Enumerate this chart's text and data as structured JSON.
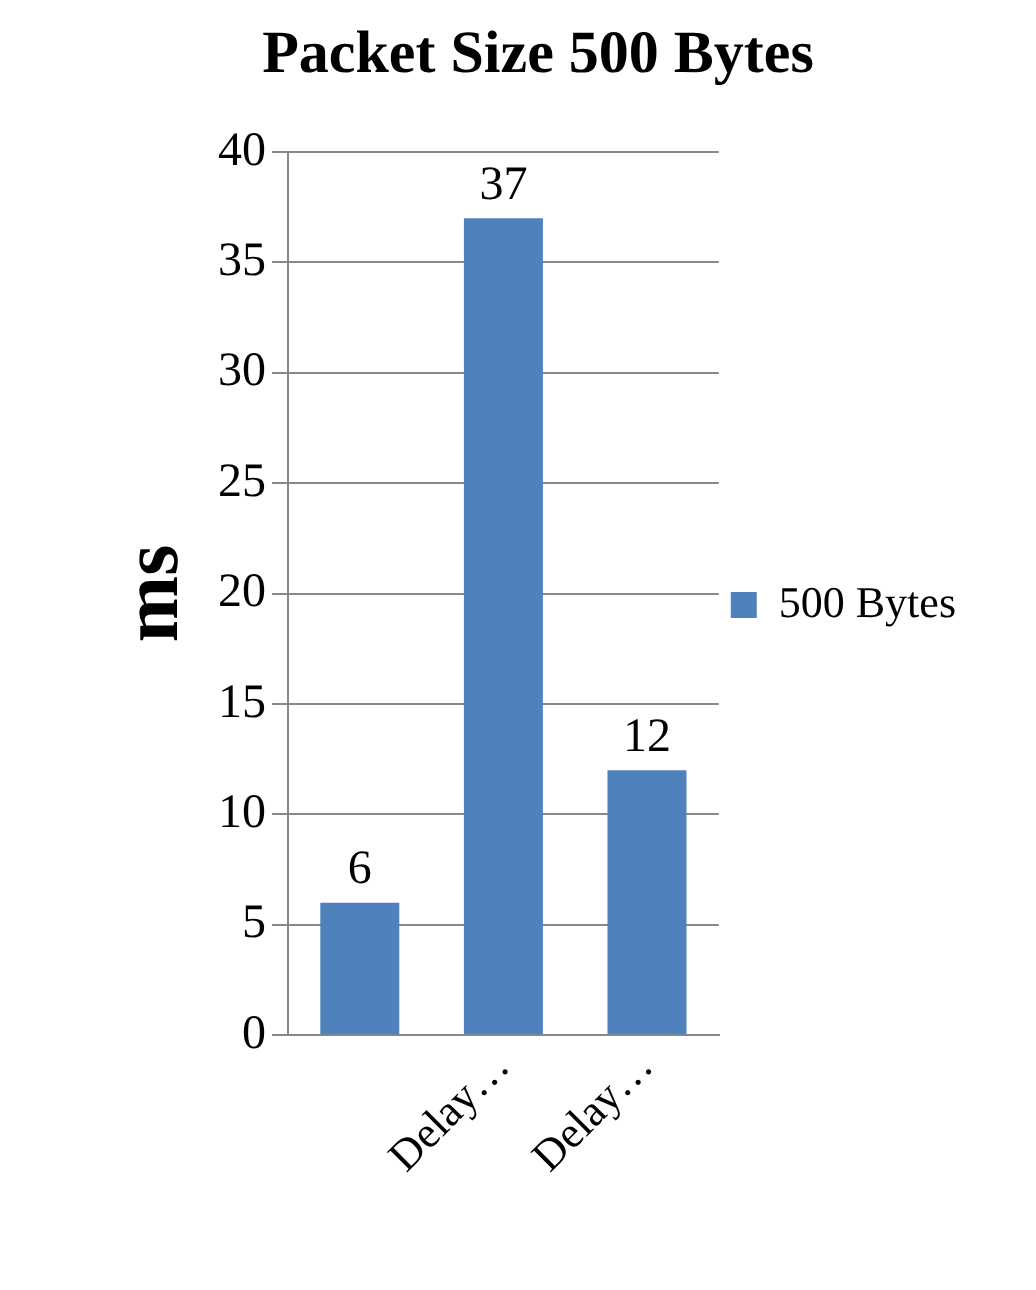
{
  "chart_data": {
    "type": "bar",
    "title": "Packet Size 500 Bytes",
    "ylabel": "ms",
    "categories": [
      null,
      "Delay…",
      "Delay…"
    ],
    "series": [
      {
        "name": "500 Bytes",
        "color": "#4f81bd",
        "values": [
          6,
          37,
          12
        ]
      }
    ],
    "ylim": [
      0,
      40
    ],
    "yticks": [
      0,
      5,
      10,
      15,
      20,
      25,
      30,
      35,
      40
    ],
    "grid": "y",
    "legend": "right",
    "data_labels": true
  }
}
